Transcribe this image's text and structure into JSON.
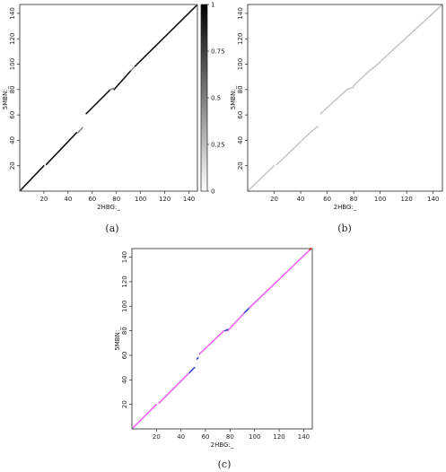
{
  "chart_data": [
    {
      "panel": "a",
      "caption": "(a)",
      "type": "line",
      "xlabel": "2HBG:_",
      "ylabel": "5MBN:_",
      "xlim": [
        0,
        147
      ],
      "ylim": [
        0,
        147
      ],
      "xticks": [
        20,
        40,
        60,
        80,
        100,
        120,
        140
      ],
      "yticks": [
        20,
        40,
        60,
        80,
        100,
        120,
        140
      ],
      "grid": false,
      "colorbar": {
        "ticks": [
          0,
          0.25,
          0.5,
          0.75,
          1
        ],
        "labels": [
          "0",
          "0.25",
          "0.5",
          "0.75",
          "1"
        ],
        "range": [
          0,
          1
        ],
        "colors": [
          "#ffffff",
          "#000000"
        ]
      },
      "series": [
        {
          "color": "#111111",
          "segments": [
            [
              [
                1,
                1
              ],
              [
                20,
                20
              ]
            ],
            [
              [
                22,
                21
              ],
              [
                47,
                46
              ]
            ],
            [
              [
                55,
                61
              ],
              [
                75,
                80
              ]
            ],
            [
              [
                78,
                80
              ],
              [
                92,
                95
              ]
            ],
            [
              [
                95,
                98
              ],
              [
                146,
                146
              ]
            ]
          ]
        },
        {
          "color": "#888888",
          "segments": [
            [
              [
                48,
                46
              ],
              [
                52,
                50
              ]
            ],
            [
              [
                75,
                80
              ],
              [
                78,
                81
              ]
            ],
            [
              [
                92,
                95
              ],
              [
                95,
                98
              ]
            ]
          ]
        }
      ]
    },
    {
      "panel": "b",
      "caption": "(b)",
      "type": "line",
      "xlabel": "2HBG:_",
      "ylabel": "5MBN:_",
      "xlim": [
        0,
        147
      ],
      "ylim": [
        0,
        147
      ],
      "xticks": [
        20,
        40,
        60,
        80,
        100,
        120,
        140
      ],
      "yticks": [
        20,
        40,
        60,
        80,
        100,
        120,
        140
      ],
      "grid": false,
      "series": [
        {
          "color": "#c8c8c8",
          "segments": [
            [
              [
                1,
                1
              ],
              [
                20,
                20
              ]
            ],
            [
              [
                22,
                21
              ],
              [
                47,
                46
              ]
            ],
            [
              [
                47,
                46
              ],
              [
                53,
                51
              ]
            ],
            [
              [
                55,
                61
              ],
              [
                75,
                80
              ]
            ],
            [
              [
                75,
                80
              ],
              [
                80,
                82
              ]
            ],
            [
              [
                80,
                83
              ],
              [
                92,
                95
              ]
            ],
            [
              [
                92,
                95
              ],
              [
                96,
                98
              ]
            ],
            [
              [
                96,
                98
              ],
              [
                146,
                146
              ]
            ]
          ]
        }
      ]
    },
    {
      "panel": "c",
      "caption": "(c)",
      "type": "line",
      "xlabel": "2HBG:_",
      "ylabel": "5MBN:_",
      "xlim": [
        0,
        147
      ],
      "ylim": [
        0,
        147
      ],
      "xticks": [
        20,
        40,
        60,
        80,
        100,
        120,
        140
      ],
      "yticks": [
        20,
        40,
        60,
        80,
        100,
        120,
        140
      ],
      "grid": false,
      "series": [
        {
          "color": "#ee66ee",
          "segments": [
            [
              [
                1,
                1
              ],
              [
                20,
                20
              ]
            ],
            [
              [
                22,
                21
              ],
              [
                47,
                46
              ]
            ],
            [
              [
                55,
                61
              ],
              [
                75,
                80
              ]
            ],
            [
              [
                78,
                80
              ],
              [
                92,
                95
              ]
            ],
            [
              [
                95,
                98
              ],
              [
                145,
                146
              ]
            ]
          ]
        },
        {
          "color": "#3344cc",
          "segments": [
            [
              [
                47,
                46
              ],
              [
                51,
                50
              ]
            ],
            [
              [
                53,
                57
              ],
              [
                54,
                58
              ]
            ],
            [
              [
                76,
                80
              ],
              [
                78,
                81
              ]
            ],
            [
              [
                92,
                95
              ],
              [
                95,
                98
              ]
            ]
          ]
        },
        {
          "color": "#cc2222",
          "segments": [
            [
              [
                145,
                146
              ],
              [
                146,
                147
              ]
            ]
          ]
        }
      ]
    }
  ]
}
